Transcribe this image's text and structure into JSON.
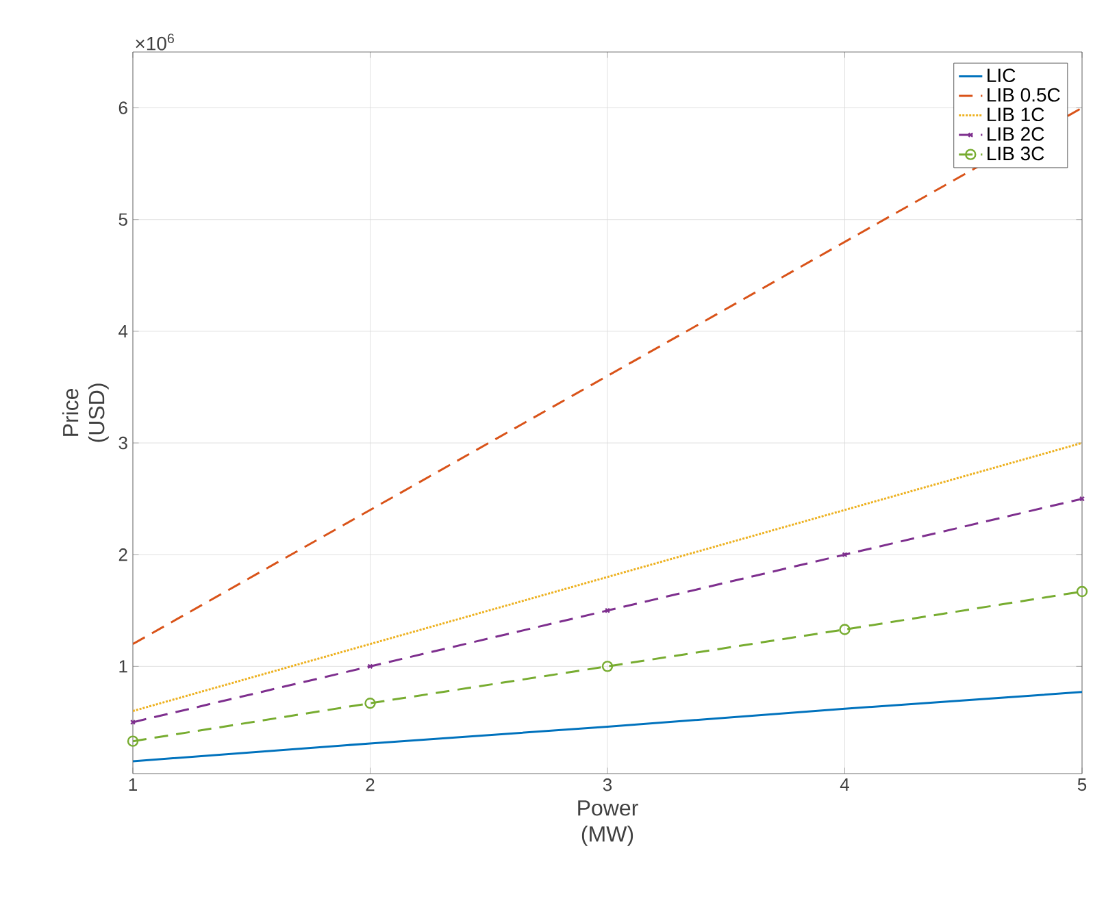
{
  "chart_data": {
    "type": "line",
    "xlabel": "Power (MW)",
    "ylabel": "Price (USD)",
    "x": [
      1,
      2,
      3,
      4,
      5
    ],
    "series": [
      {
        "name": "LIC",
        "color": "#0072bd",
        "line_style": "solid",
        "marker": "none",
        "values": [
          0.15,
          0.31,
          0.46,
          0.62,
          0.77
        ]
      },
      {
        "name": "LIB 0.5C",
        "color": "#d95319",
        "line_style": "dashed",
        "marker": "none",
        "values": [
          1.2,
          2.4,
          3.6,
          4.8,
          6.0
        ]
      },
      {
        "name": "LIB 1C",
        "color": "#edb120",
        "line_style": "dotted",
        "marker": "none",
        "values": [
          0.6,
          1.2,
          1.8,
          2.4,
          3.0
        ]
      },
      {
        "name": "LIB 2C",
        "color": "#7e2f8e",
        "line_style": "dashed",
        "marker": "cross",
        "values": [
          0.5,
          1.0,
          1.5,
          2.0,
          2.5
        ]
      },
      {
        "name": "LIB 3C",
        "color": "#77ac30",
        "line_style": "dashed",
        "marker": "circle",
        "values": [
          0.33,
          0.67,
          1.0,
          1.33,
          1.67
        ]
      }
    ],
    "xlim": [
      1,
      5
    ],
    "xticks": [
      1,
      2,
      3,
      4,
      5
    ],
    "ylim": [
      0.04,
      6.5
    ],
    "yticks": [
      1,
      2,
      3,
      4,
      5,
      6
    ],
    "annotations": [
      "×10$^{6}$"
    ],
    "grid": true,
    "legend": "top right"
  }
}
